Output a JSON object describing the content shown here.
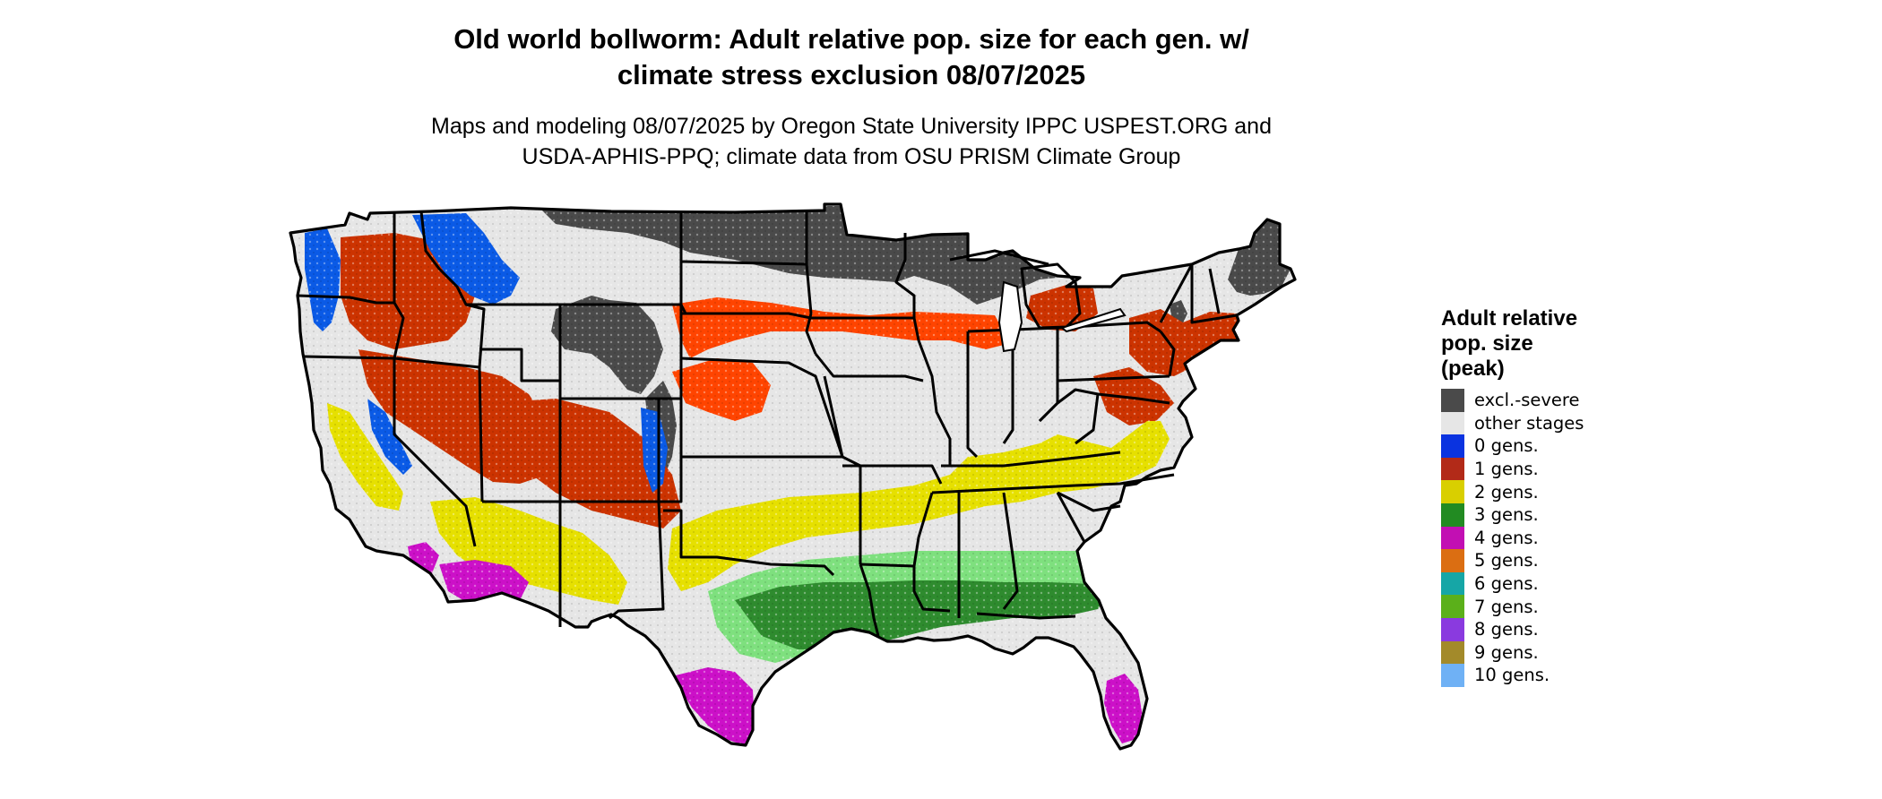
{
  "title": {
    "line1": "Old world bollworm: Adult relative pop. size for each gen. w/",
    "line2": "climate stress exclusion 08/07/2025"
  },
  "subtitle": {
    "line1": "Maps and modeling 08/07/2025 by Oregon State University IPPC USPEST.ORG and",
    "line2": "USDA-APHIS-PPQ; climate data from OSU PRISM Climate Group"
  },
  "legend": {
    "title_lines": [
      "Adult relative",
      "pop. size",
      "(peak)"
    ],
    "items": [
      {
        "label": "excl.-severe",
        "color": "#4a4a4a"
      },
      {
        "label": "other stages",
        "color": "#e6e6e6"
      },
      {
        "label": "0 gens.",
        "color": "#0a33e0"
      },
      {
        "label": "1 gens.",
        "color": "#b22a18"
      },
      {
        "label": "2 gens.",
        "color": "#d9cf00"
      },
      {
        "label": "3 gens.",
        "color": "#228b22"
      },
      {
        "label": "4 gens.",
        "color": "#c20fb3"
      },
      {
        "label": "5 gens.",
        "color": "#db6e12"
      },
      {
        "label": "6 gens.",
        "color": "#16a6a6"
      },
      {
        "label": "7 gens.",
        "color": "#5bb01a"
      },
      {
        "label": "8 gens.",
        "color": "#8a3adf"
      },
      {
        "label": "9 gens.",
        "color": "#a38a2a"
      },
      {
        "label": "10 gens.",
        "color": "#6fb1f5"
      }
    ]
  },
  "map": {
    "region": "contiguous-us",
    "colors": {
      "excluded": "#4a4a4a",
      "other": "#e6e6e6",
      "gen0": "#0a5ae6",
      "gen1": "#cc3300",
      "gen1_bright": "#ff4400",
      "gen2": "#e6e000",
      "gen3_light": "#7ee07e",
      "gen3": "#2e8b2e",
      "gen4": "#cc10c8",
      "gen5": "#e07020",
      "border": "#000000"
    }
  }
}
